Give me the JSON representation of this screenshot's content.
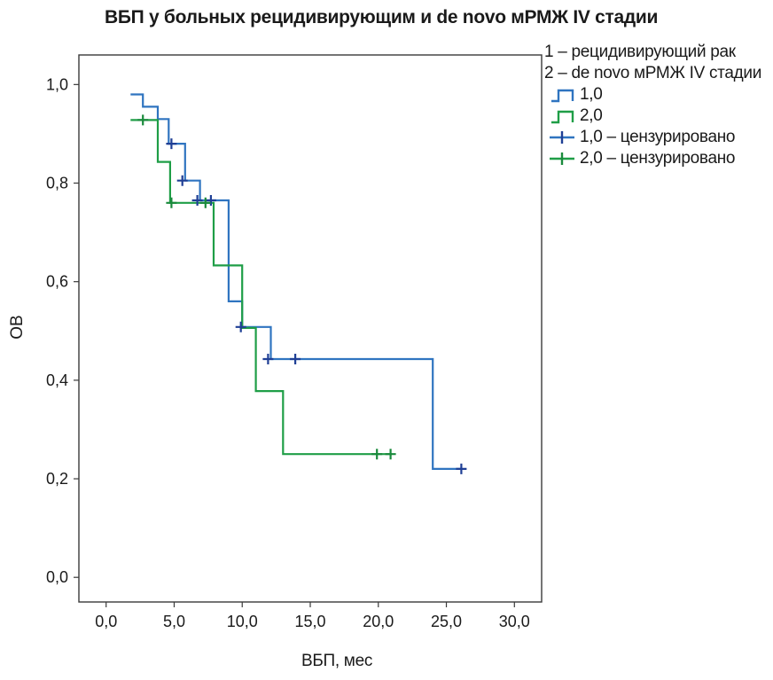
{
  "chart_data": {
    "type": "line",
    "title": "ВБП у больных рецидивирующим и de novo мРМЖ IV стадии",
    "xlabel": "ВБП, мес",
    "ylabel": "ОВ",
    "xlim": [
      -2,
      32
    ],
    "ylim": [
      -0.05,
      1.06
    ],
    "x_ticks": [
      0,
      5,
      10,
      15,
      20,
      25,
      30
    ],
    "x_tick_labels": [
      "0,0",
      "5,0",
      "10,0",
      "15,0",
      "20,0",
      "25,0",
      "30,0"
    ],
    "y_ticks": [
      0,
      0.2,
      0.4,
      0.6,
      0.8,
      1.0
    ],
    "y_tick_labels": [
      "0,0",
      "0,2",
      "0,4",
      "0,6",
      "0,8",
      "1,0"
    ],
    "grid": false,
    "legend_position": "top-right",
    "legend_notes": [
      "1 – рецидивирующий рак",
      "2 – de novo мРМЖ IV стадии"
    ],
    "series": [
      {
        "name": "1,0",
        "censored_name": "1,0 – цензурировано",
        "color": "#2f74c0",
        "censor_color": "#1f3f95",
        "steps": [
          [
            1.8,
            0.98
          ],
          [
            2.7,
            0.955
          ],
          [
            3.8,
            0.93
          ],
          [
            4.6,
            0.88
          ],
          [
            5.7,
            0.88
          ],
          [
            5.8,
            0.805
          ],
          [
            6.8,
            0.805
          ],
          [
            6.9,
            0.765
          ],
          [
            8.9,
            0.765
          ],
          [
            9.0,
            0.56
          ],
          [
            9.9,
            0.56
          ],
          [
            10.0,
            0.508
          ],
          [
            12.0,
            0.508
          ],
          [
            12.1,
            0.443
          ],
          [
            23.9,
            0.443
          ],
          [
            24.0,
            0.22
          ],
          [
            26.1,
            0.22
          ]
        ],
        "censored": [
          [
            4.8,
            0.88
          ],
          [
            5.6,
            0.805
          ],
          [
            6.7,
            0.765
          ],
          [
            7.7,
            0.765
          ],
          [
            9.9,
            0.508
          ],
          [
            11.9,
            0.443
          ],
          [
            13.9,
            0.443
          ],
          [
            26.1,
            0.22
          ]
        ]
      },
      {
        "name": "2,0",
        "censored_name": "2,0 – цензурировано",
        "color": "#1f9e47",
        "censor_color": "#1a8a3c",
        "steps": [
          [
            1.8,
            0.928
          ],
          [
            3.7,
            0.928
          ],
          [
            3.8,
            0.843
          ],
          [
            4.6,
            0.843
          ],
          [
            4.7,
            0.76
          ],
          [
            7.8,
            0.76
          ],
          [
            7.9,
            0.633
          ],
          [
            9.9,
            0.633
          ],
          [
            10.0,
            0.506
          ],
          [
            10.9,
            0.506
          ],
          [
            11.0,
            0.378
          ],
          [
            12.9,
            0.378
          ],
          [
            13.0,
            0.25
          ],
          [
            21.0,
            0.25
          ]
        ],
        "censored": [
          [
            2.7,
            0.928
          ],
          [
            4.8,
            0.76
          ],
          [
            7.3,
            0.76
          ],
          [
            19.9,
            0.25
          ],
          [
            20.9,
            0.25
          ]
        ]
      }
    ]
  }
}
